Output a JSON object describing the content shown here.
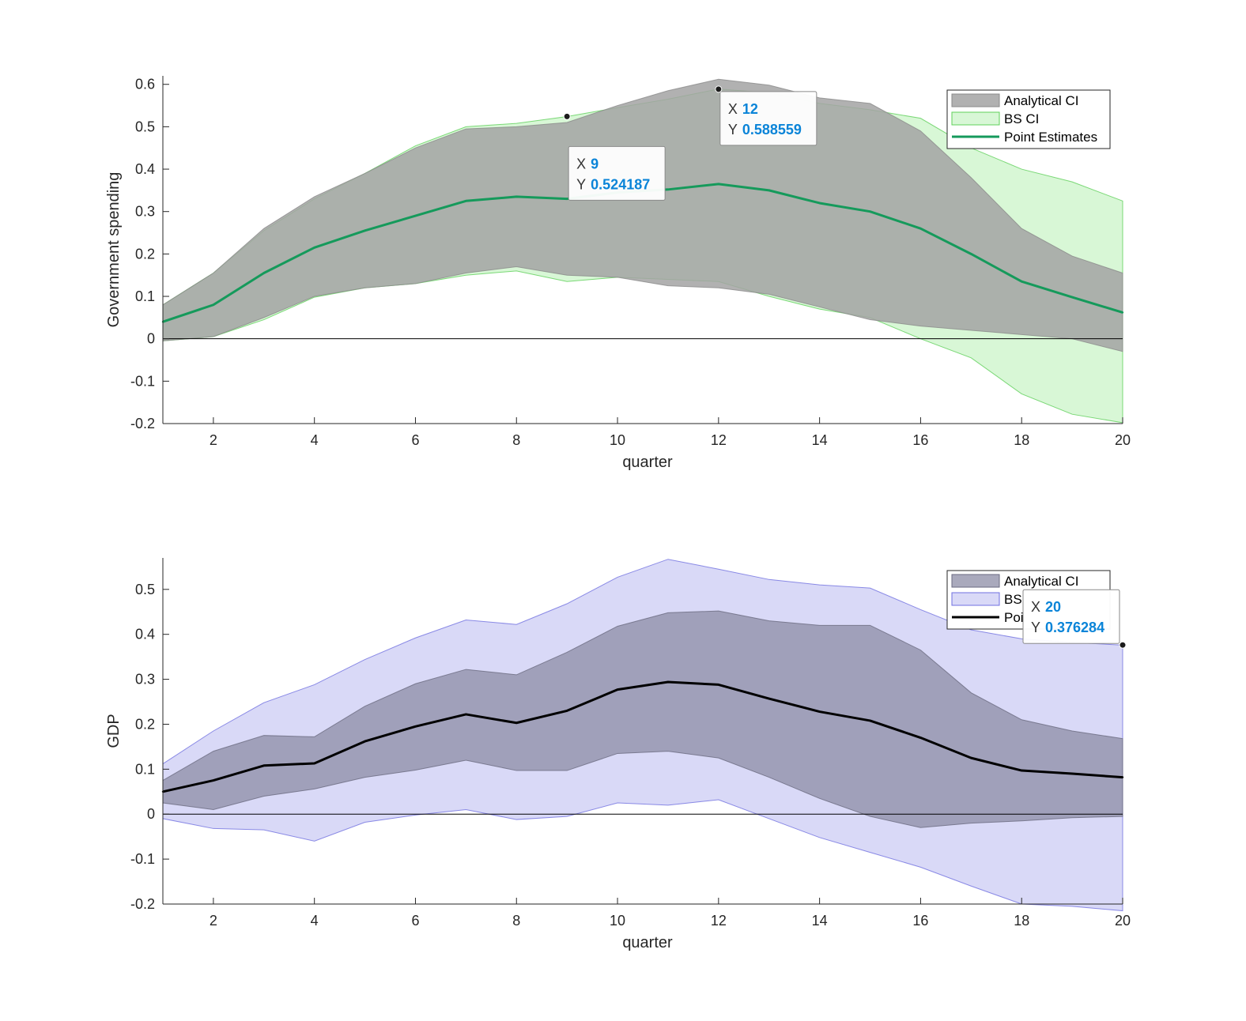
{
  "chart_data": [
    {
      "type": "area",
      "xlabel": "quarter",
      "ylabel": "Government spending",
      "xlim": [
        1,
        20
      ],
      "ylim": [
        -0.2,
        0.62
      ],
      "xticks": [
        2,
        4,
        6,
        8,
        10,
        12,
        14,
        16,
        18,
        20
      ],
      "yticks": [
        -0.2,
        -0.1,
        0,
        0.1,
        0.2,
        0.3,
        0.4,
        0.5,
        0.6
      ],
      "ytick_labels": [
        "-0.2",
        "-0.1",
        "0",
        "0.1",
        "0.2",
        "0.3",
        "0.4",
        "0.5",
        "0.6"
      ],
      "zero_line": true,
      "grid": false,
      "legend_position": "top-right",
      "x": [
        1,
        2,
        3,
        4,
        5,
        6,
        7,
        8,
        9,
        10,
        11,
        12,
        13,
        14,
        15,
        16,
        17,
        18,
        19,
        20
      ],
      "series": [
        {
          "name": "Analytical CI",
          "kind": "band",
          "color": "#a3a3a3",
          "upper": [
            0.08,
            0.155,
            0.26,
            0.335,
            0.39,
            0.45,
            0.495,
            0.5,
            0.51,
            0.55,
            0.585,
            0.612,
            0.598,
            0.568,
            0.555,
            0.49,
            0.38,
            0.26,
            0.195,
            0.155
          ],
          "lower": [
            -0.005,
            0.005,
            0.05,
            0.1,
            0.12,
            0.13,
            0.155,
            0.17,
            0.15,
            0.145,
            0.125,
            0.12,
            0.105,
            0.075,
            0.045,
            0.03,
            0.02,
            0.01,
            0.0,
            -0.03
          ]
        },
        {
          "name": "BS CI",
          "kind": "band",
          "color": "#b8f0b4",
          "upper": [
            0.08,
            0.155,
            0.255,
            0.33,
            0.39,
            0.455,
            0.5,
            0.508,
            0.524,
            0.545,
            0.565,
            0.589,
            0.58,
            0.555,
            0.54,
            0.52,
            0.45,
            0.4,
            0.37,
            0.325
          ],
          "lower": [
            -0.005,
            0.005,
            0.045,
            0.098,
            0.12,
            0.13,
            0.15,
            0.16,
            0.135,
            0.145,
            0.14,
            0.135,
            0.1,
            0.07,
            0.05,
            0.0,
            -0.045,
            -0.13,
            -0.178,
            -0.198
          ]
        },
        {
          "name": "Point Estimates",
          "kind": "line",
          "color": "#159a5b",
          "values": [
            0.04,
            0.08,
            0.155,
            0.215,
            0.255,
            0.29,
            0.325,
            0.335,
            0.33,
            0.345,
            0.352,
            0.365,
            0.35,
            0.32,
            0.3,
            0.26,
            0.2,
            0.135,
            0.098,
            0.062
          ]
        }
      ],
      "legend": [
        "Analytical CI",
        "BS CI",
        "Point Estimates"
      ],
      "datatips": [
        {
          "x": 9,
          "y": 0.524187,
          "x_text": "9",
          "y_text": "0.524187"
        },
        {
          "x": 12,
          "y": 0.588559,
          "x_text": "12",
          "y_text": "0.588559"
        }
      ]
    },
    {
      "type": "area",
      "xlabel": "quarter",
      "ylabel": "GDP",
      "xlim": [
        1,
        20
      ],
      "ylim": [
        -0.2,
        0.57
      ],
      "xticks": [
        2,
        4,
        6,
        8,
        10,
        12,
        14,
        16,
        18,
        20
      ],
      "yticks": [
        -0.2,
        -0.1,
        0,
        0.1,
        0.2,
        0.3,
        0.4,
        0.5
      ],
      "ytick_labels": [
        "-0.2",
        "-0.1",
        "0",
        "0.1",
        "0.2",
        "0.3",
        "0.4",
        "0.5"
      ],
      "zero_line": true,
      "grid": false,
      "legend_position": "top-right",
      "x": [
        1,
        2,
        3,
        4,
        5,
        6,
        7,
        8,
        9,
        10,
        11,
        12,
        13,
        14,
        15,
        16,
        17,
        18,
        19,
        20
      ],
      "series": [
        {
          "name": "Analytical CI",
          "kind": "band",
          "color": "#8c8ca6",
          "upper": [
            0.075,
            0.14,
            0.175,
            0.172,
            0.24,
            0.29,
            0.322,
            0.31,
            0.36,
            0.418,
            0.448,
            0.452,
            0.43,
            0.42,
            0.42,
            0.365,
            0.27,
            0.21,
            0.185,
            0.168
          ],
          "lower": [
            0.025,
            0.01,
            0.04,
            0.056,
            0.082,
            0.098,
            0.12,
            0.097,
            0.097,
            0.135,
            0.14,
            0.125,
            0.082,
            0.035,
            -0.005,
            -0.03,
            -0.02,
            -0.015,
            -0.008,
            -0.005
          ]
        },
        {
          "name": "BS CI",
          "kind": "band",
          "color": "#cfd0f5",
          "upper": [
            0.112,
            0.185,
            0.248,
            0.288,
            0.344,
            0.392,
            0.432,
            0.422,
            0.468,
            0.527,
            0.567,
            0.545,
            0.522,
            0.51,
            0.503,
            0.455,
            0.41,
            0.39,
            0.382,
            0.376
          ],
          "lower": [
            -0.01,
            -0.032,
            -0.035,
            -0.06,
            -0.018,
            -0.002,
            0.01,
            -0.012,
            -0.005,
            0.025,
            0.02,
            0.032,
            -0.01,
            -0.052,
            -0.085,
            -0.118,
            -0.16,
            -0.2,
            -0.205,
            -0.215
          ]
        },
        {
          "name": "Point Estimates",
          "kind": "line",
          "color": "#000000",
          "values": [
            0.05,
            0.075,
            0.108,
            0.113,
            0.162,
            0.195,
            0.222,
            0.203,
            0.23,
            0.277,
            0.294,
            0.288,
            0.257,
            0.228,
            0.208,
            0.17,
            0.125,
            0.097,
            0.09,
            0.082
          ]
        }
      ],
      "legend": [
        "Analytical CI",
        "BS CI",
        "Point Estimates"
      ],
      "legend_visible_text": [
        "Analytical CI",
        "BS",
        "Poi"
      ],
      "datatips": [
        {
          "x": 20,
          "y": 0.376284,
          "x_text": "20",
          "y_text": "0.376284"
        }
      ]
    }
  ],
  "tip_labels": {
    "x": "X",
    "y": "Y"
  }
}
